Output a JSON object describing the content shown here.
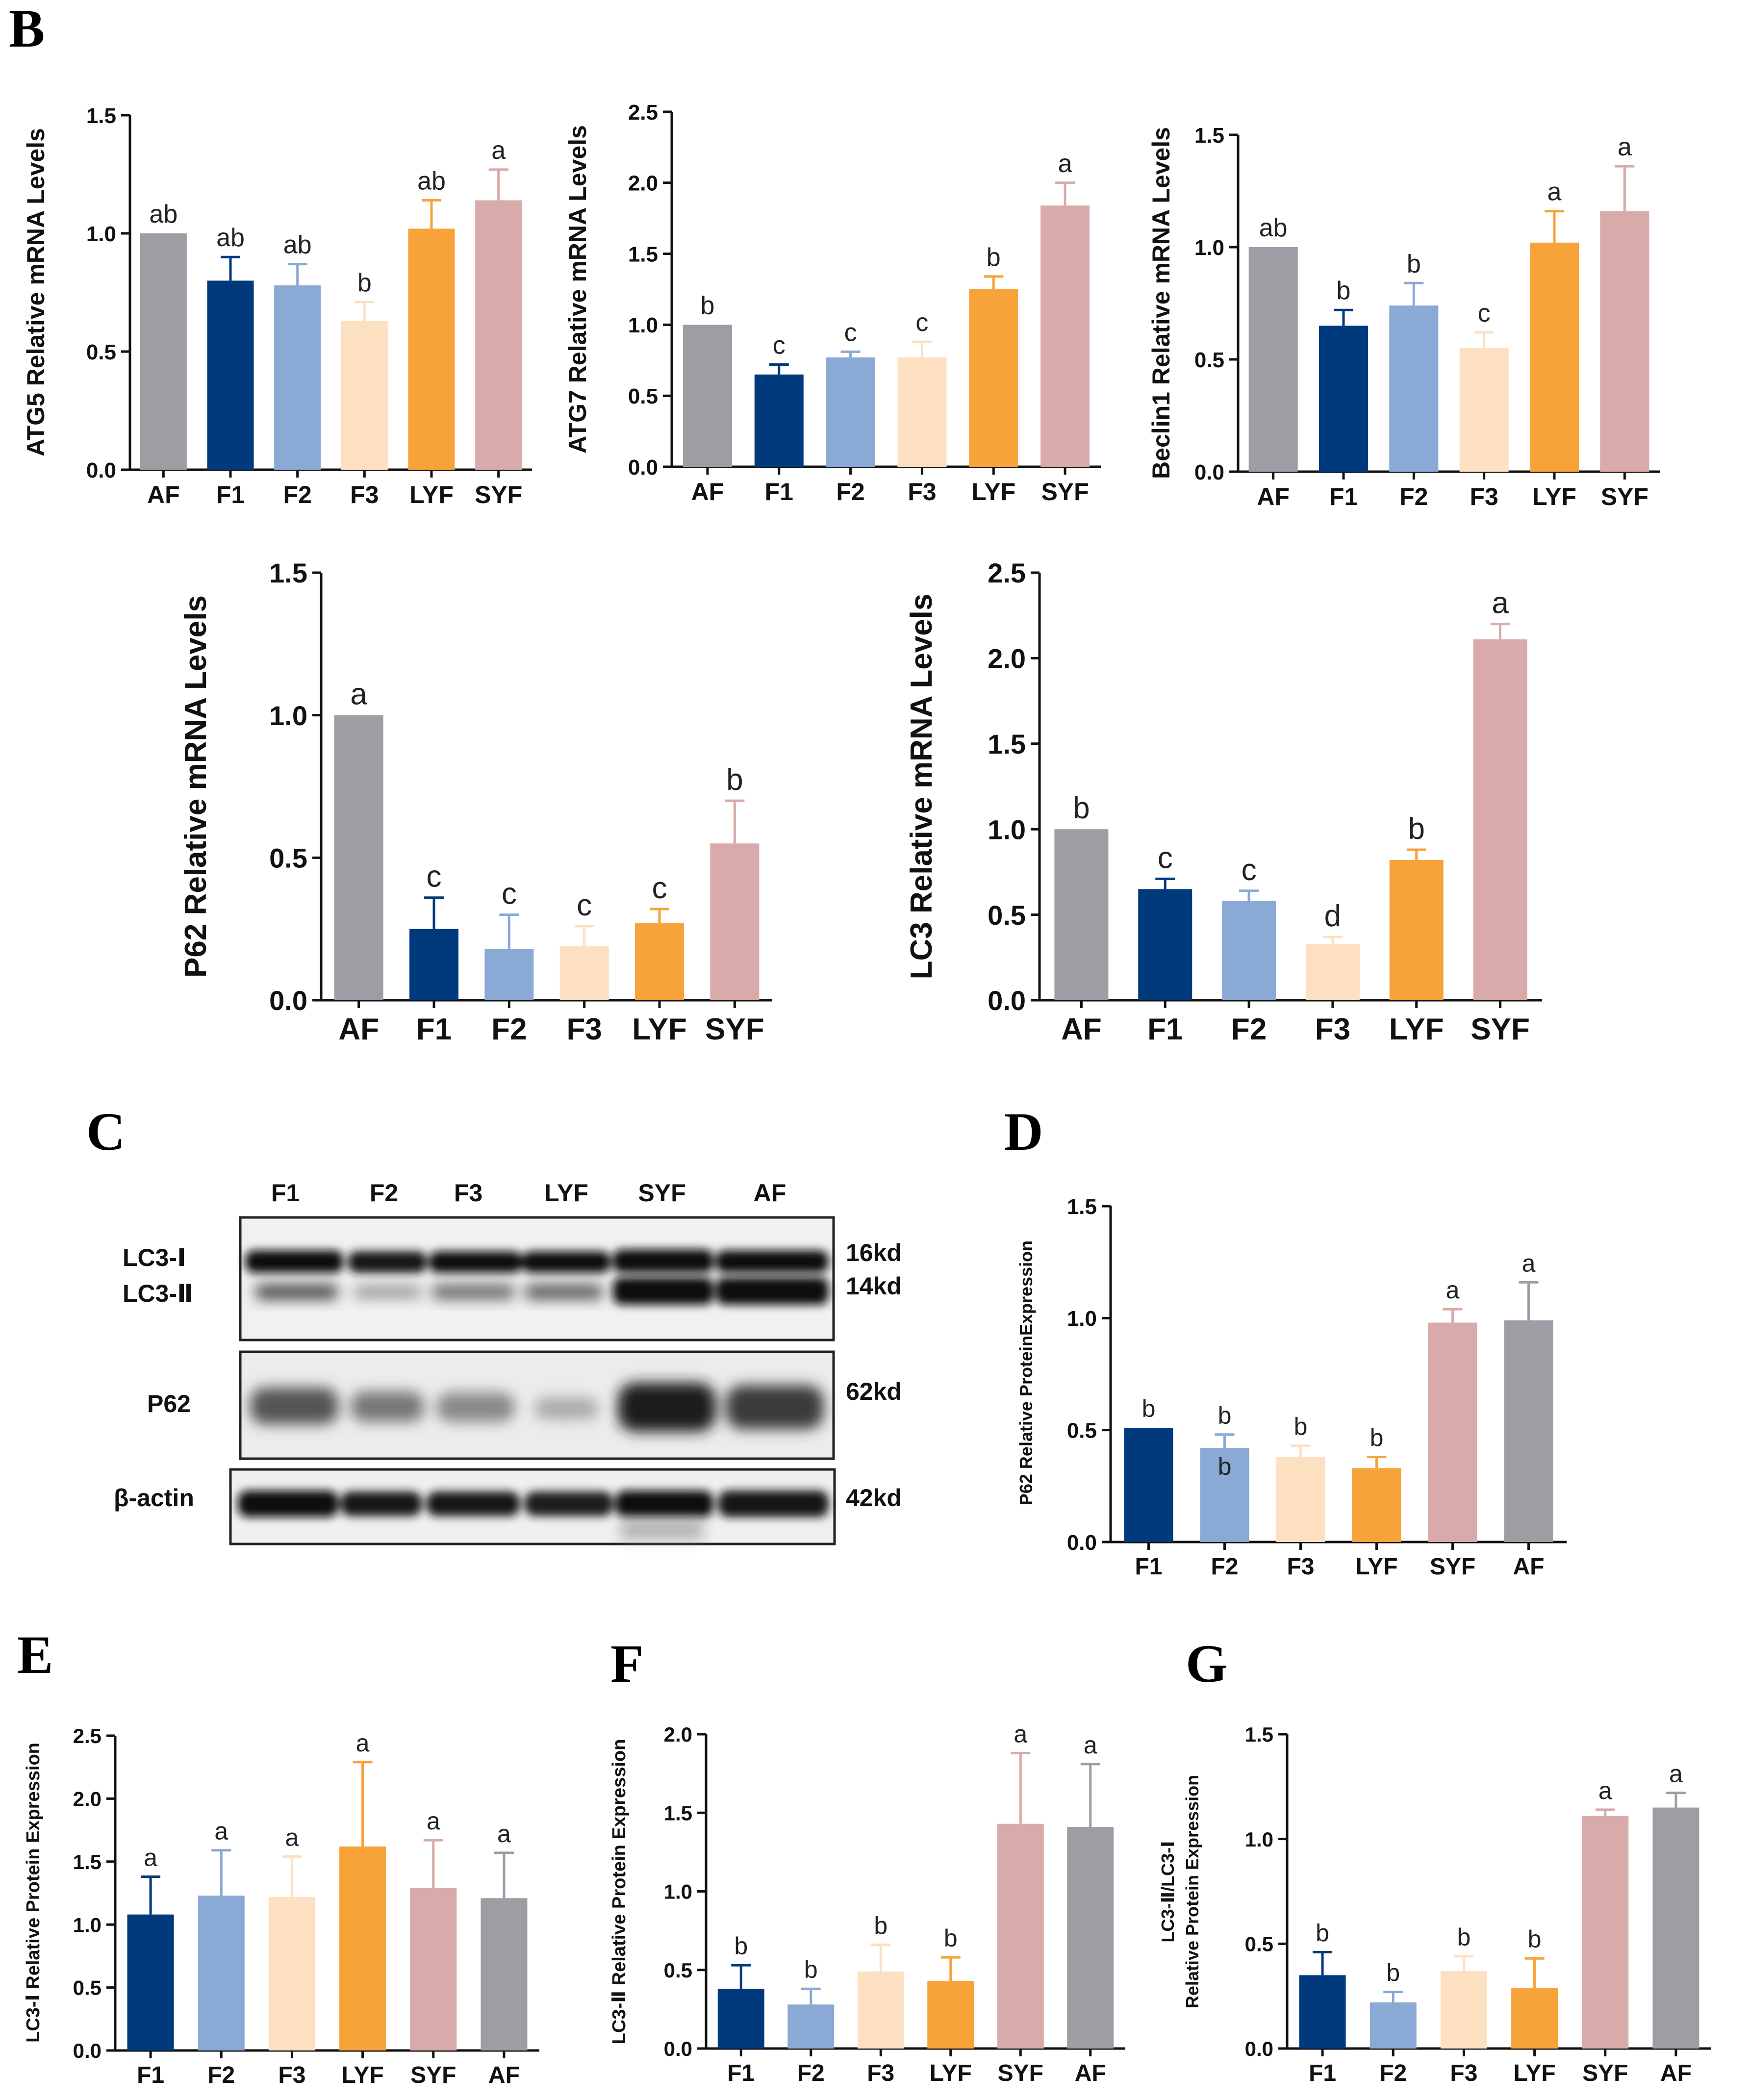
{
  "colors": {
    "F1": "#003a7c",
    "F2": "#8aa9d4",
    "F3": "#fde0c2",
    "LYF": "#f7a33a",
    "SYF": "#d8aaa9",
    "AF": "#9d9ea3"
  },
  "panel_letters": [
    "B",
    "C",
    "D",
    "E",
    "F",
    "G"
  ],
  "blot": {
    "letter": "C",
    "lanes": [
      "F1",
      "F2",
      "F3",
      "LYF",
      "SYF",
      "AF"
    ],
    "rows": [
      {
        "label": "LC3-Ⅰ",
        "size": "16kd"
      },
      {
        "label": "LC3-Ⅱ",
        "size": "14kd"
      },
      {
        "label": "P62",
        "size": "62kd"
      },
      {
        "label": "β-actin",
        "size": "42kd"
      }
    ]
  },
  "chart_data": [
    {
      "id": "atg5",
      "panel": "B",
      "type": "bar",
      "ylabel": "ATG5 Relative mRNA Levels",
      "categories": [
        "AF",
        "F1",
        "F2",
        "F3",
        "LYF",
        "SYF"
      ],
      "values": [
        1.0,
        0.8,
        0.78,
        0.63,
        1.02,
        1.14
      ],
      "errors": [
        0,
        0.1,
        0.09,
        0.08,
        0.12,
        0.13
      ],
      "labels": [
        "ab",
        "ab",
        "ab",
        "b",
        "ab",
        "a"
      ],
      "ylim": [
        0,
        1.5
      ],
      "yticks": [
        "0.0",
        "0.5",
        "1.0",
        "1.5"
      ]
    },
    {
      "id": "atg7",
      "panel": "B",
      "type": "bar",
      "ylabel": "ATG7 Relative mRNA Levels",
      "categories": [
        "AF",
        "F1",
        "F2",
        "F3",
        "LYF",
        "SYF"
      ],
      "values": [
        1.0,
        0.65,
        0.77,
        0.77,
        1.25,
        1.84
      ],
      "errors": [
        0,
        0.07,
        0.04,
        0.11,
        0.09,
        0.16
      ],
      "labels": [
        "b",
        "c",
        "c",
        "c",
        "b",
        "a"
      ],
      "ylim": [
        0,
        2.5
      ],
      "yticks": [
        "0.0",
        "0.5",
        "1.0",
        "1.5",
        "2.0",
        "2.5"
      ]
    },
    {
      "id": "beclin1",
      "panel": "B",
      "type": "bar",
      "ylabel": "Beclin1 Relative mRNA Levels",
      "categories": [
        "AF",
        "F1",
        "F2",
        "F3",
        "LYF",
        "SYF"
      ],
      "values": [
        1.0,
        0.65,
        0.74,
        0.55,
        1.02,
        1.16
      ],
      "errors": [
        0,
        0.07,
        0.1,
        0.07,
        0.14,
        0.2
      ],
      "labels": [
        "ab",
        "b",
        "b",
        "c",
        "a",
        "a"
      ],
      "ylim": [
        0,
        1.5
      ],
      "yticks": [
        "0.0",
        "0.5",
        "1.0",
        "1.5"
      ]
    },
    {
      "id": "p62mrna",
      "panel": "B",
      "type": "bar",
      "ylabel": "P62 Relative mRNA Levels",
      "categories": [
        "AF",
        "F1",
        "F2",
        "F3",
        "LYF",
        "SYF"
      ],
      "values": [
        1.0,
        0.25,
        0.18,
        0.19,
        0.27,
        0.55
      ],
      "errors": [
        0,
        0.11,
        0.12,
        0.07,
        0.05,
        0.15
      ],
      "labels": [
        "a",
        "c",
        "c",
        "c",
        "c",
        "b"
      ],
      "ylim": [
        0,
        1.5
      ],
      "yticks": [
        "0.0",
        "0.5",
        "1.0",
        "1.5"
      ]
    },
    {
      "id": "lc3mrna",
      "panel": "B",
      "type": "bar",
      "ylabel": "LC3 Relative mRNA Levels",
      "categories": [
        "AF",
        "F1",
        "F2",
        "F3",
        "LYF",
        "SYF"
      ],
      "values": [
        1.0,
        0.65,
        0.58,
        0.33,
        0.82,
        2.11
      ],
      "errors": [
        0,
        0.06,
        0.06,
        0.04,
        0.06,
        0.09
      ],
      "labels": [
        "b",
        "c",
        "c",
        "d",
        "b",
        "a"
      ],
      "ylim": [
        0,
        2.5
      ],
      "yticks": [
        "0.0",
        "0.5",
        "1.0",
        "1.5",
        "2.0",
        "2.5"
      ]
    },
    {
      "id": "p62prot",
      "panel": "D",
      "type": "bar",
      "ylabel": "P62  Relative ProteinExpression",
      "categories": [
        "F1",
        "F2",
        "F3",
        "LYF",
        "SYF",
        "AF"
      ],
      "values": [
        0.51,
        0.42,
        0.38,
        0.33,
        0.98,
        0.99
      ],
      "errors": [
        0,
        0.06,
        0.05,
        0.05,
        0.06,
        0.17
      ],
      "labels": [
        "b",
        "b",
        "b",
        "b",
        "a",
        "a"
      ],
      "extra_label": "b",
      "ylim": [
        0,
        1.5
      ],
      "yticks": [
        "0.0",
        "0.5",
        "1.0",
        "1.5"
      ]
    },
    {
      "id": "lc3i",
      "panel": "E",
      "type": "bar",
      "ylabel": "LC3-Ⅰ Relative Protein Expression",
      "categories": [
        "F1",
        "F2",
        "F3",
        "LYF",
        "SYF",
        "AF"
      ],
      "values": [
        1.08,
        1.23,
        1.22,
        1.62,
        1.29,
        1.21
      ],
      "errors": [
        0.3,
        0.36,
        0.32,
        0.67,
        0.38,
        0.36
      ],
      "labels": [
        "a",
        "a",
        "a",
        "a",
        "a",
        "a"
      ],
      "ylim": [
        0,
        2.5
      ],
      "yticks": [
        "0.0",
        "0.5",
        "1.0",
        "1.5",
        "2.0",
        "2.5"
      ]
    },
    {
      "id": "lc3ii",
      "panel": "F",
      "type": "bar",
      "ylabel": "LC3-Ⅱ Relative Protein Expression",
      "categories": [
        "F1",
        "F2",
        "F3",
        "LYF",
        "SYF",
        "AF"
      ],
      "values": [
        0.38,
        0.28,
        0.49,
        0.43,
        1.43,
        1.41
      ],
      "errors": [
        0.15,
        0.1,
        0.17,
        0.15,
        0.45,
        0.4
      ],
      "labels": [
        "b",
        "b",
        "b",
        "b",
        "a",
        "a"
      ],
      "ylim": [
        0,
        2.0
      ],
      "yticks": [
        "0.0",
        "0.5",
        "1.0",
        "1.5",
        "2.0"
      ]
    },
    {
      "id": "ratio",
      "panel": "G",
      "type": "bar",
      "ylabel": "LC3-Ⅱ/LC3-Ⅰ",
      "ylabel2": "Relative Protein Expression",
      "categories": [
        "F1",
        "F2",
        "F3",
        "LYF",
        "SYF",
        "AF"
      ],
      "values": [
        0.35,
        0.22,
        0.37,
        0.29,
        1.11,
        1.15
      ],
      "errors": [
        0.11,
        0.05,
        0.07,
        0.14,
        0.03,
        0.07
      ],
      "labels": [
        "b",
        "b",
        "b",
        "b",
        "a",
        "a"
      ],
      "ylim": [
        0,
        1.5
      ],
      "yticks": [
        "0.0",
        "0.5",
        "1.0",
        "1.5"
      ]
    }
  ]
}
